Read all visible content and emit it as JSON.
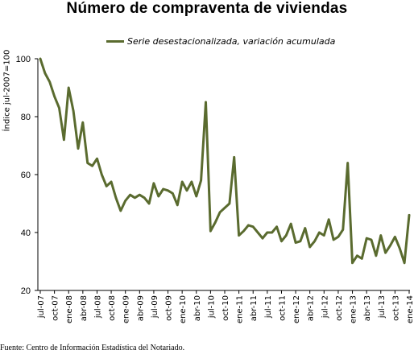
{
  "chart_data": {
    "type": "line",
    "title": "Número de compraventa de viviendas",
    "ylabel": "Índice jul-2007=100",
    "xlabel": "",
    "ylim": [
      20,
      100
    ],
    "yticks": [
      20,
      40,
      60,
      80,
      100
    ],
    "grid": false,
    "legend_position": "top",
    "x_tick_labels": [
      "jul-07",
      "oct-07",
      "ene-08",
      "abr-08",
      "jul-08",
      "oct-08",
      "ene-09",
      "abr-09",
      "jul-09",
      "oct-09",
      "ene-10",
      "abr-10",
      "jul-10",
      "oct-10",
      "ene-11",
      "abr-11",
      "jul-11",
      "oct-11",
      "ene-12",
      "abr-12",
      "jul-12",
      "oct-12",
      "ene-13",
      "abr-13",
      "jul-13",
      "oct-13",
      "ene-14"
    ],
    "series": [
      {
        "name": "Serie desestacionalizada, variación acumulada",
        "color": "#5a6b2f",
        "values": [
          100,
          95,
          92,
          87,
          83,
          72,
          90,
          82,
          69,
          78,
          64,
          63,
          65.5,
          60,
          56,
          57.5,
          52,
          47.5,
          51,
          53,
          52,
          53,
          52,
          50,
          57,
          52.5,
          55,
          54.5,
          53.5,
          49.5,
          57.5,
          54.5,
          57.5,
          52.5,
          58,
          85,
          40.5,
          43.5,
          47,
          48.5,
          50,
          66,
          39,
          40.5,
          42.5,
          42,
          40,
          38,
          40,
          40,
          42,
          37,
          39,
          43,
          36.5,
          37,
          41.5,
          35,
          37,
          40,
          39,
          44.5,
          37.5,
          38.5,
          41,
          64,
          29.5,
          32,
          31,
          38,
          37.5,
          32,
          39,
          33,
          35.5,
          38.5,
          34.5,
          29.5,
          46
        ]
      }
    ],
    "source": "Fuente: Centro de Información Estadística del Notariado."
  }
}
